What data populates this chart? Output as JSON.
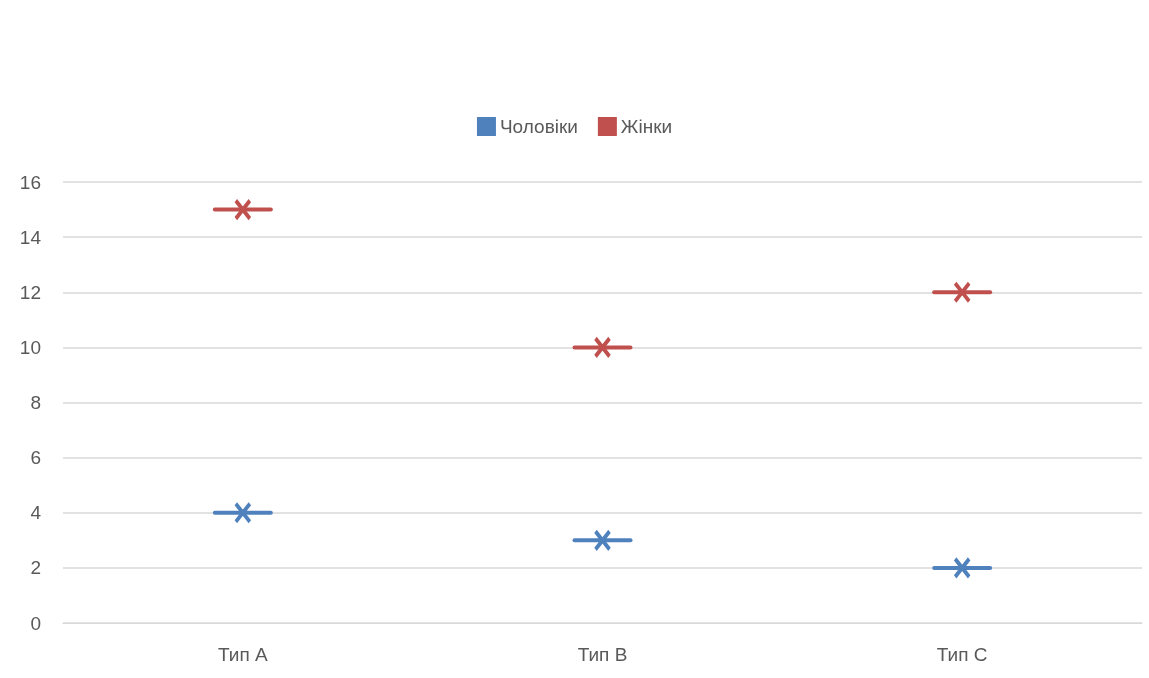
{
  "chart_data": {
    "type": "scatter",
    "categories": [
      "Тип A",
      "Тип B",
      "Тип C"
    ],
    "series": [
      {
        "name": "Чоловіки",
        "color": "#4f81bd",
        "values": [
          4,
          3,
          2
        ]
      },
      {
        "name": "Жінки",
        "color": "#c0504d",
        "values": [
          15,
          10,
          12
        ]
      }
    ],
    "ylim": [
      0,
      16
    ],
    "yticks": [
      0,
      2,
      4,
      6,
      8,
      10,
      12,
      14,
      16
    ],
    "grid": "y",
    "legend": "top",
    "marker": "cross"
  }
}
